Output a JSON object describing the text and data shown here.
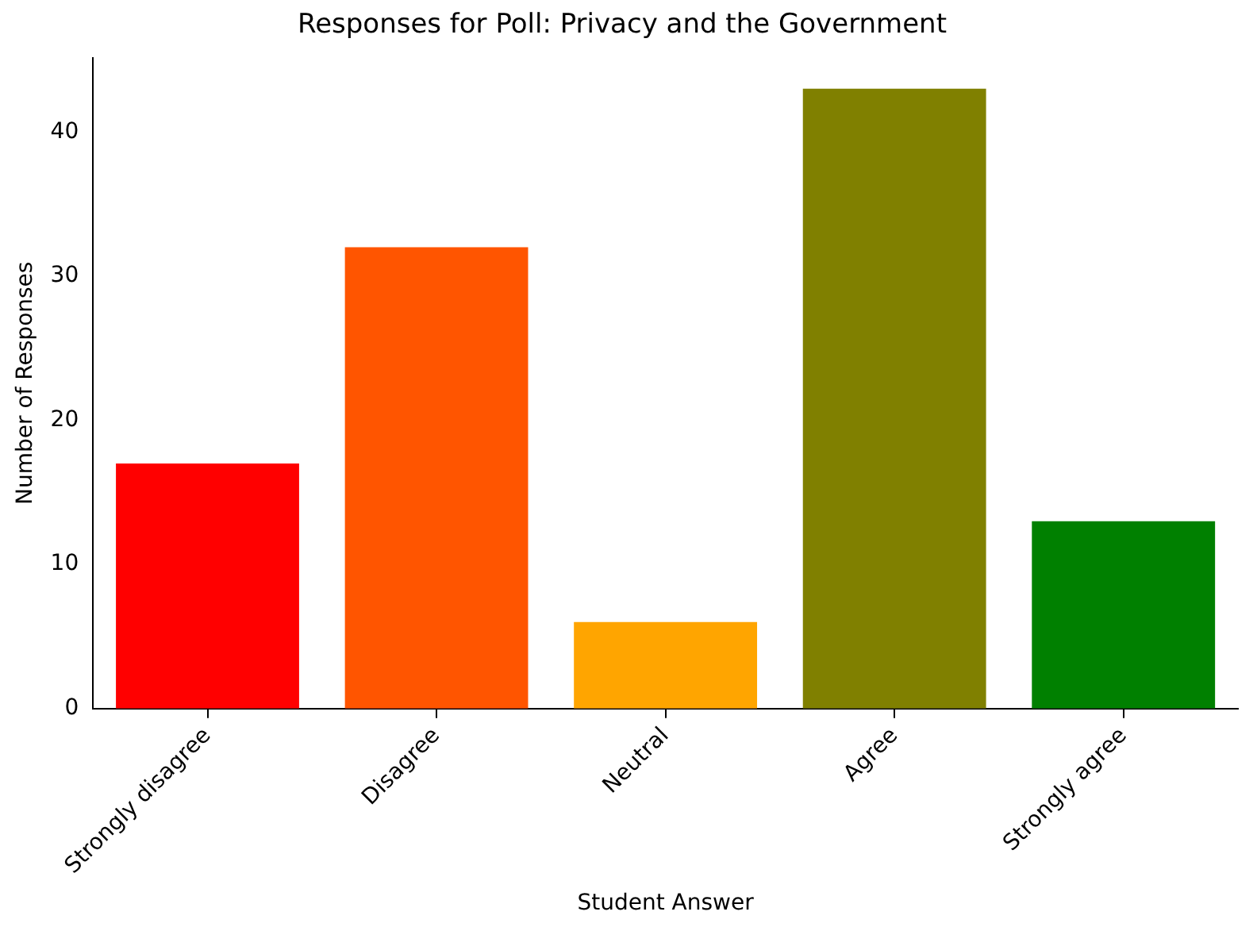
{
  "chart_data": {
    "type": "bar",
    "title": "Responses for Poll: Privacy and the Government",
    "xlabel": "Student Answer",
    "ylabel": "Number of Responses",
    "categories": [
      "Strongly disagree",
      "Disagree",
      "Neutral",
      "Agree",
      "Strongly agree"
    ],
    "values": [
      17,
      32,
      6,
      43,
      13
    ],
    "colors": [
      "#ff0000",
      "#ff5500",
      "#ffa500",
      "#808000",
      "#008000"
    ],
    "ylim": [
      0,
      45.15
    ],
    "yticks": [
      0,
      10,
      20,
      30,
      40
    ],
    "grid": false,
    "legend": false
  }
}
